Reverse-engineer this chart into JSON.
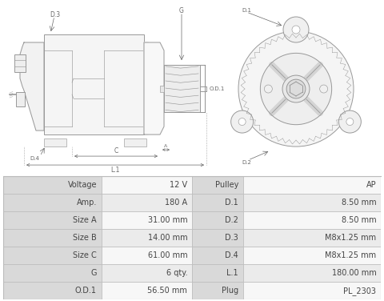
{
  "table_rows": [
    [
      "Voltage",
      "12 V",
      "Pulley",
      "AP"
    ],
    [
      "Amp.",
      "180 A",
      "D.1",
      "8.50 mm"
    ],
    [
      "Size A",
      "31.00 mm",
      "D.2",
      "8.50 mm"
    ],
    [
      "Size B",
      "14.00 mm",
      "D.3",
      "M8x1.25 mm"
    ],
    [
      "Size C",
      "61.00 mm",
      "D.4",
      "M8x1.25 mm"
    ],
    [
      "G",
      "6 qty.",
      "L.1",
      "180.00 mm"
    ],
    [
      "O.D.1",
      "56.50 mm",
      "Plug",
      "PL_2303"
    ]
  ],
  "header_bg": "#d9d9d9",
  "row_bg_odd": "#ebebeb",
  "row_bg_even": "#f7f7f7",
  "border_color": "#bbbbbb",
  "text_color": "#444444",
  "bg_color": "#ffffff",
  "lc": "#999999",
  "dim_color": "#666666",
  "font_size": 7.0
}
